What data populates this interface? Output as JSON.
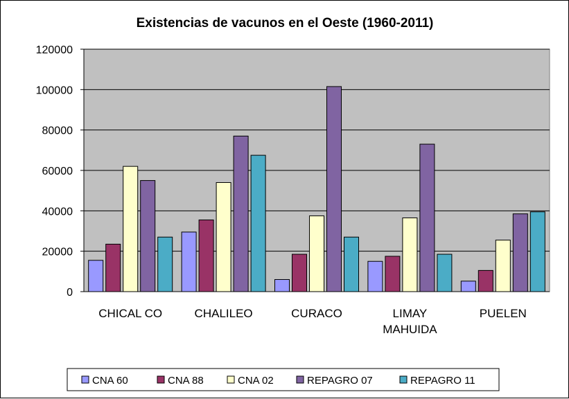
{
  "chart_data": {
    "type": "bar",
    "title": "Existencias de vacunos en el Oeste (1960-2011)",
    "xlabel": "",
    "ylabel": "",
    "ylim": [
      0,
      120000
    ],
    "yticks": [
      0,
      20000,
      40000,
      60000,
      80000,
      100000,
      120000
    ],
    "grid": true,
    "legend_position": "bottom",
    "plot_background": "#c0c0c0",
    "categories": [
      [
        "CHICAL CO"
      ],
      [
        "CHALILEO"
      ],
      [
        "CURACO"
      ],
      [
        "LIMAY",
        "MAHUIDA"
      ],
      [
        "PUELEN"
      ]
    ],
    "series": [
      {
        "name": "CNA 60",
        "color": "#9999ff",
        "values": [
          15500,
          29500,
          6000,
          15000,
          5200
        ]
      },
      {
        "name": "CNA 88",
        "color": "#993366",
        "values": [
          23500,
          35500,
          18500,
          17500,
          10500
        ]
      },
      {
        "name": "CNA 02",
        "color": "#ffffcc",
        "values": [
          62000,
          54000,
          37500,
          36500,
          25500
        ]
      },
      {
        "name": "REPAGRO 07",
        "color": "#8064a2",
        "values": [
          55000,
          77000,
          101500,
          73000,
          38500
        ]
      },
      {
        "name": "REPAGRO 11",
        "color": "#4bacc6",
        "values": [
          27000,
          67500,
          27000,
          18500,
          39500
        ]
      }
    ]
  }
}
